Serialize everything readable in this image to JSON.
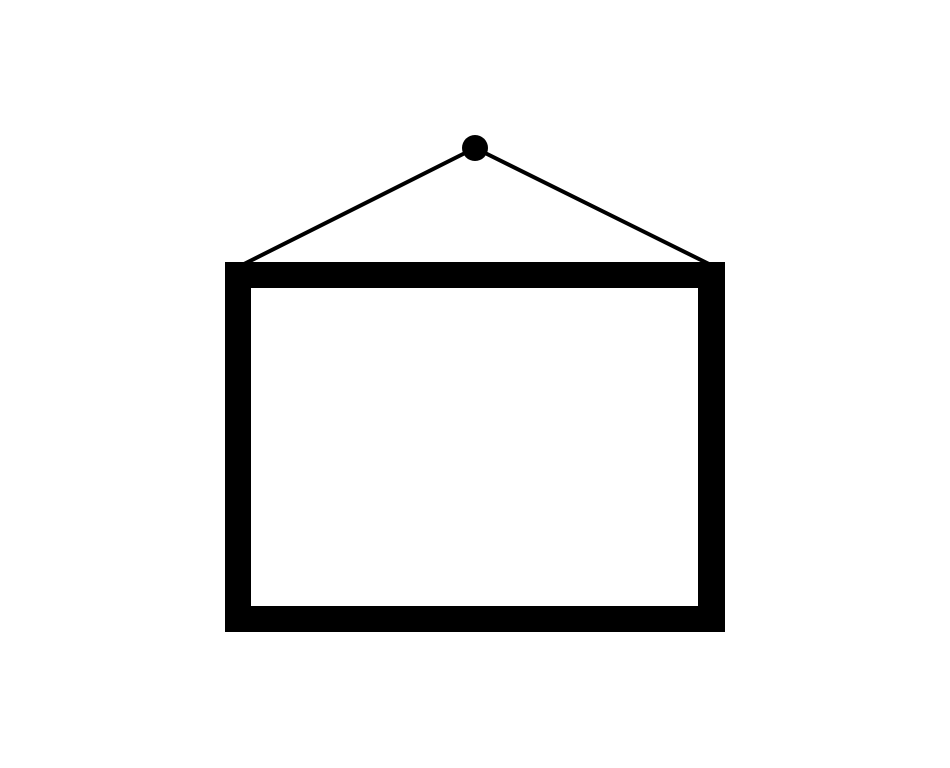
{
  "icon": {
    "name": "picture-frame-icon",
    "color": "#000000",
    "background": "#ffffff"
  }
}
